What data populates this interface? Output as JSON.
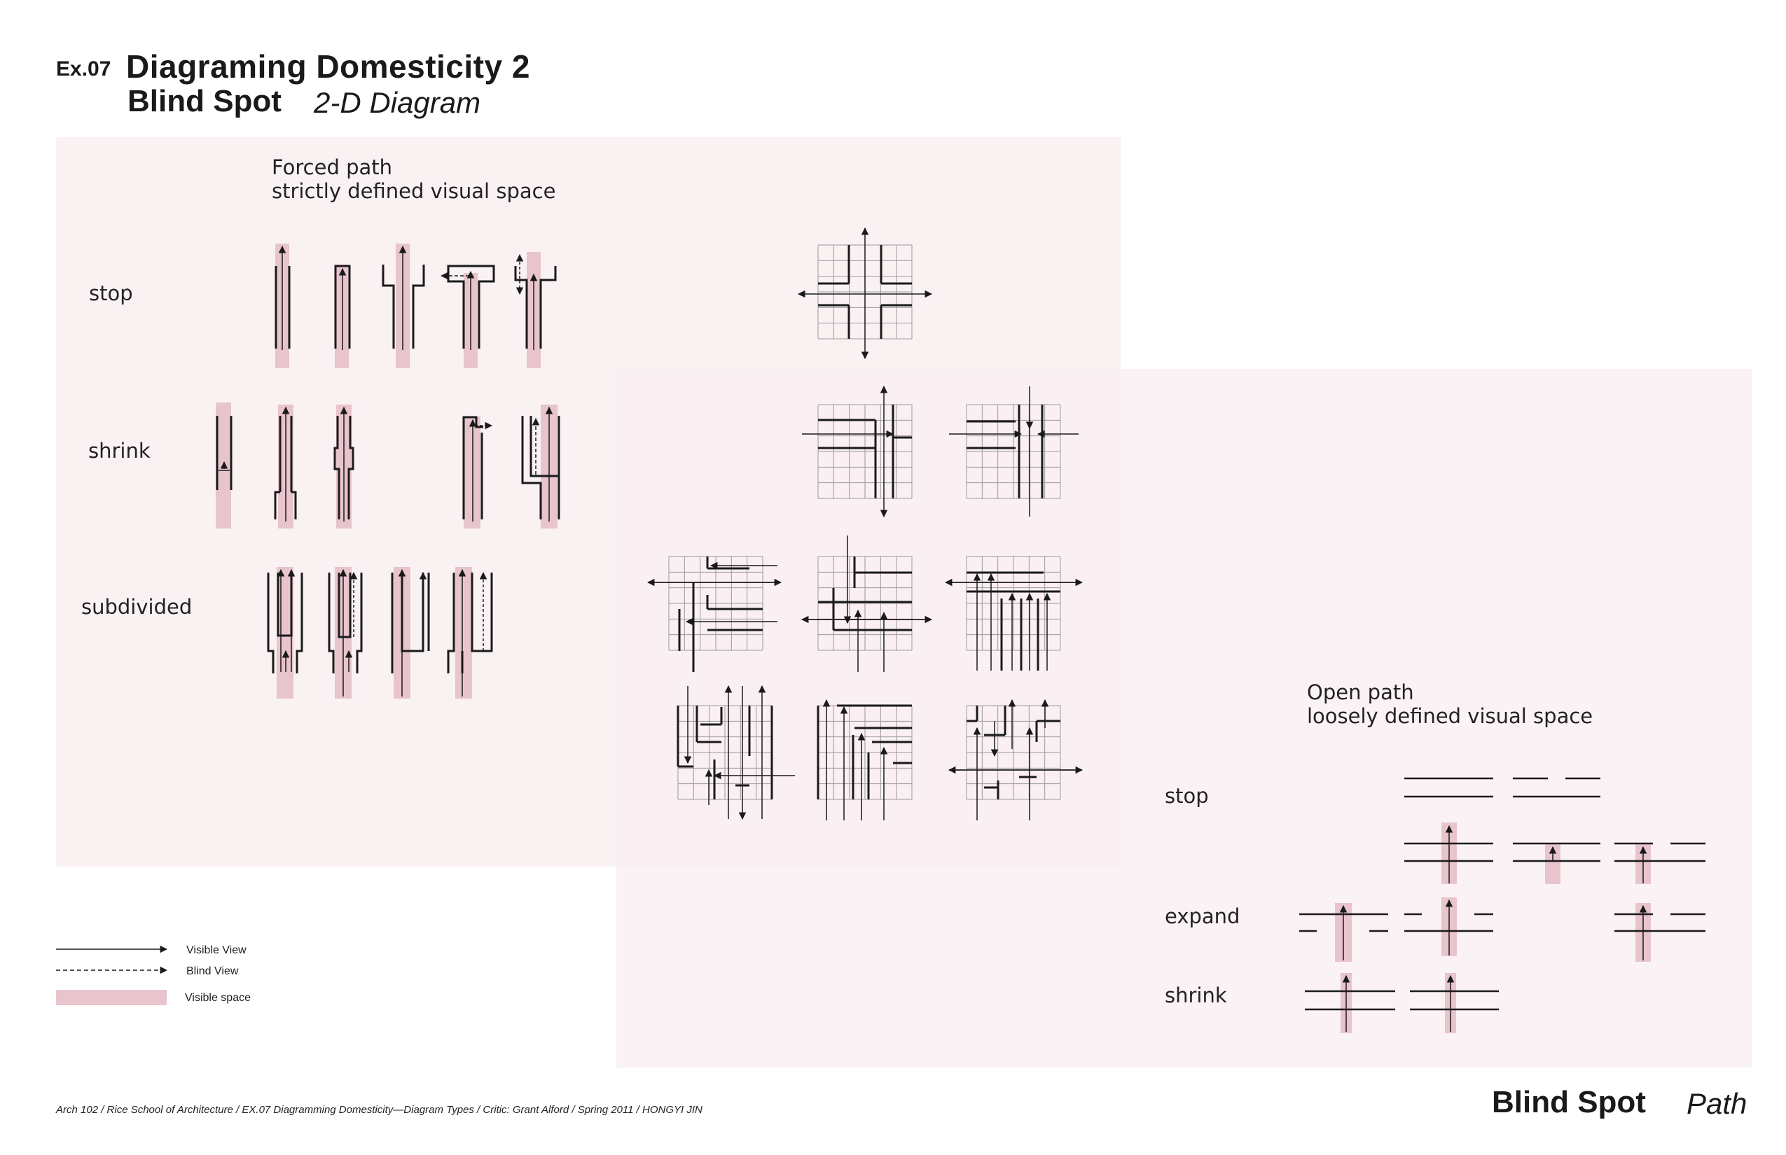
{
  "header": {
    "exercise": "Ex.07",
    "title": "Diagraming Domesticity 2",
    "subtitle": "Blind Spot",
    "subtitle_italic": "2-D Diagram"
  },
  "forced": {
    "heading_line1": "Forced path",
    "heading_line2": "strictly defined visual space",
    "rows": [
      "stop",
      "shrink",
      "subdivided"
    ]
  },
  "open": {
    "heading_line1": "Open path",
    "heading_line2": "loosely defined visual space",
    "rows": [
      "stop",
      "expand",
      "shrink"
    ]
  },
  "legend": {
    "visible_view": "Visible View",
    "blind_view": "Blind View",
    "visible_space": "Visible space"
  },
  "footer": {
    "credit": "Arch 102 / Rice School of Architecture / EX.07 Diagramming Domesticity—Diagram Types / Critic: Grant Alford / Spring 2011 / HONGYI JIN",
    "title": "Blind Spot",
    "title_italic": "Path"
  },
  "colors": {
    "visible_space": "#e8c4cd",
    "panel": "#f9eef1",
    "line": "#1a1a1a",
    "grid": "#999999"
  }
}
